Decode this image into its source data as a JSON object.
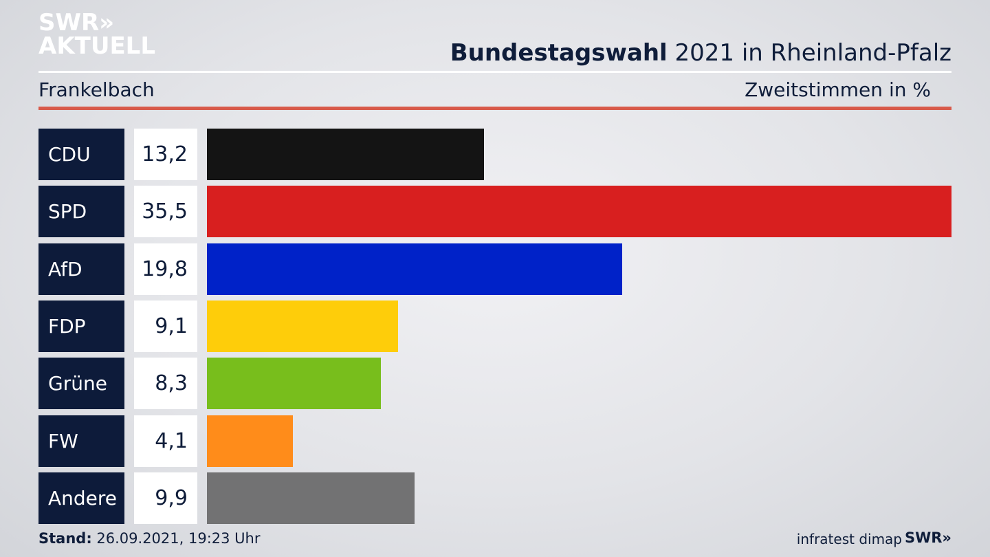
{
  "logo": {
    "line1": "SWR»",
    "line2": "AKTUELL"
  },
  "header": {
    "title_bold": "Bundestagswahl",
    "title_rest": " 2021 in Rheinland-Pfalz",
    "subtitle": "Frankelbach",
    "measure": "Zweitstimmen",
    "unit": "in %"
  },
  "chart_data": {
    "type": "bar",
    "orientation": "horizontal",
    "categories": [
      "CDU",
      "SPD",
      "AfD",
      "FDP",
      "Grüne",
      "FW",
      "Andere"
    ],
    "values": [
      13.2,
      35.5,
      19.8,
      9.1,
      8.3,
      4.1,
      9.9
    ],
    "value_labels": [
      "13,2",
      "35,5",
      "19,8",
      "9,1",
      "8,3",
      "4,1",
      "9,9"
    ],
    "colors": [
      "#141414",
      "#d81f1f",
      "#0022c8",
      "#fecd0a",
      "#78be1c",
      "#ff8c1a",
      "#727273"
    ],
    "xlim": [
      0,
      35.5
    ]
  },
  "footer": {
    "stand_label": "Stand:",
    "stand_value": " 26.09.2021, 19:23 Uhr",
    "source": "infratest dimap",
    "broadcaster": "SWR»"
  }
}
